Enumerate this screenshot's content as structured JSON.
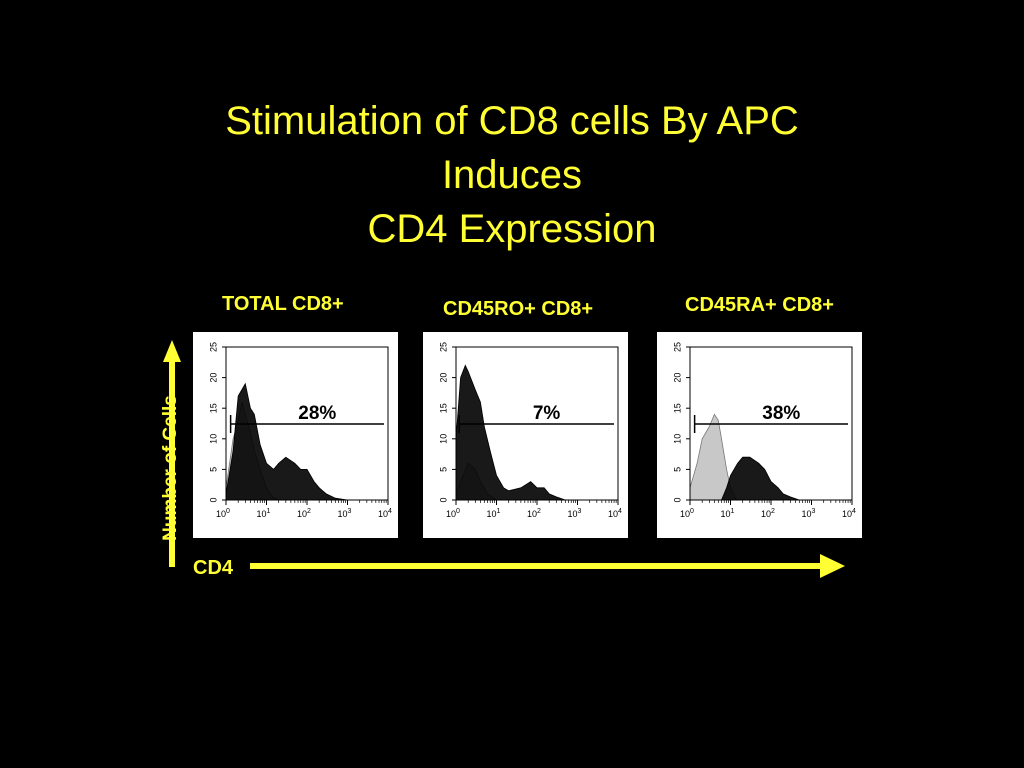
{
  "slide": {
    "title_lines": [
      "Stimulation of CD8 cells By APC",
      "Induces",
      "CD4 Expression"
    ],
    "y_axis_label": "Number of Cells",
    "x_axis_label": "CD4",
    "accent_color": "#ffff33"
  },
  "chart_data": [
    {
      "type": "area",
      "title": "TOTAL CD8+",
      "annotation": "28%",
      "xscale": "log",
      "xlim": [
        1,
        10000
      ],
      "ylim": [
        0,
        25
      ],
      "yticks": [
        0,
        5,
        10,
        15,
        20,
        25
      ],
      "xtick_labels": [
        "10^0",
        "10^1",
        "10^2",
        "10^3",
        "10^4"
      ],
      "gate_start": 1.3,
      "series": [
        {
          "fill": "#c8c8c8",
          "x": [
            1,
            1.5,
            2,
            2.5,
            3,
            4,
            5,
            7,
            10,
            14,
            20
          ],
          "values": [
            2,
            10,
            13,
            16,
            14,
            11,
            8,
            5,
            2,
            0.5,
            0
          ]
        },
        {
          "fill": "#000000",
          "x": [
            1,
            1.5,
            2,
            3,
            4,
            5,
            7,
            10,
            15,
            20,
            30,
            50,
            70,
            100,
            150,
            200,
            300,
            500,
            1000
          ],
          "values": [
            1,
            8,
            17,
            19,
            15,
            14,
            9,
            6,
            5,
            6,
            7,
            6,
            5,
            5,
            3,
            2,
            1,
            0.3,
            0
          ]
        }
      ]
    },
    {
      "type": "area",
      "title": "CD45RO+ CD8+",
      "annotation": "7%",
      "xscale": "log",
      "xlim": [
        1,
        10000
      ],
      "ylim": [
        0,
        25
      ],
      "yticks": [
        0,
        5,
        10,
        15,
        20,
        25
      ],
      "xtick_labels": [
        "10^0",
        "10^1",
        "10^2",
        "10^3",
        "10^4"
      ],
      "gate_start": 1.2,
      "series": [
        {
          "fill": "#c8c8c8",
          "x": [
            1,
            1.5,
            2,
            3,
            4,
            6,
            10
          ],
          "values": [
            1,
            4,
            6,
            5,
            3,
            1,
            0
          ]
        },
        {
          "fill": "#000000",
          "x": [
            1,
            1.3,
            1.7,
            2,
            3,
            4,
            5,
            7,
            10,
            15,
            20,
            40,
            70,
            100,
            150,
            200,
            300,
            500
          ],
          "values": [
            10,
            20,
            22,
            21,
            18,
            16,
            12,
            8,
            4,
            2,
            1.5,
            2,
            3,
            2,
            2,
            1,
            0.5,
            0
          ]
        }
      ]
    },
    {
      "type": "area",
      "title": "CD45RA+ CD8+",
      "annotation": "38%",
      "xscale": "log",
      "xlim": [
        1,
        10000
      ],
      "ylim": [
        0,
        25
      ],
      "yticks": [
        0,
        5,
        10,
        15,
        20,
        25
      ],
      "xtick_labels": [
        "10^0",
        "10^1",
        "10^2",
        "10^3",
        "10^4"
      ],
      "gate_start": 1.3,
      "series": [
        {
          "fill": "#c8c8c8",
          "x": [
            1,
            1.5,
            2,
            3,
            4,
            5,
            6,
            8,
            10,
            14
          ],
          "values": [
            2,
            6,
            10,
            12,
            14,
            13,
            10,
            5,
            2,
            0
          ]
        },
        {
          "fill": "#000000",
          "x": [
            6,
            8,
            10,
            15,
            20,
            30,
            50,
            70,
            100,
            150,
            200,
            300,
            500
          ],
          "values": [
            0,
            2,
            4,
            6,
            7,
            7,
            6,
            5,
            3,
            2,
            1,
            0.5,
            0
          ]
        }
      ]
    }
  ]
}
